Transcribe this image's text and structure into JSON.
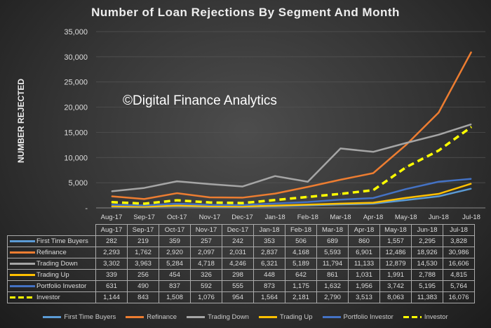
{
  "chart_data": {
    "type": "line",
    "title": "Number of Loan Rejections By Segment And Month",
    "xlabel": "",
    "ylabel": "NUMBER REJECTED",
    "ylim": [
      0,
      35000
    ],
    "yticks": [
      "-",
      "5,000",
      "10,000",
      "15,000",
      "20,000",
      "25,000",
      "30,000",
      "35,000"
    ],
    "grid": true,
    "legend_position": "bottom",
    "categories": [
      "Aug-17",
      "Sep-17",
      "Oct-17",
      "Nov-17",
      "Dec-17",
      "Jan-18",
      "Feb-18",
      "Mar-18",
      "Apr-18",
      "May-18",
      "Jun-18",
      "Jul-18"
    ],
    "series": [
      {
        "name": "First Time Buyers",
        "color": "#5b9bd5",
        "dash": false,
        "values": [
          282,
          219,
          359,
          257,
          242,
          353,
          506,
          689,
          860,
          1557,
          2295,
          3828
        ],
        "labels": [
          "282",
          "219",
          "359",
          "257",
          "242",
          "353",
          "506",
          "689",
          "860",
          "1,557",
          "2,295",
          "3,828"
        ]
      },
      {
        "name": "Refinance",
        "color": "#ed7d31",
        "dash": false,
        "values": [
          2293,
          1762,
          2920,
          2097,
          2031,
          2837,
          4168,
          5593,
          6901,
          12486,
          18926,
          30986
        ],
        "labels": [
          "2,293",
          "1,762",
          "2,920",
          "2,097",
          "2,031",
          "2,837",
          "4,168",
          "5,593",
          "6,901",
          "12,486",
          "18,926",
          "30,986"
        ]
      },
      {
        "name": "Trading Down",
        "color": "#a5a5a5",
        "dash": false,
        "values": [
          3302,
          3963,
          5284,
          4718,
          4246,
          6321,
          5189,
          11794,
          11133,
          12879,
          14530,
          16606
        ],
        "labels": [
          "3,302",
          "3,963",
          "5,284",
          "4,718",
          "4,246",
          "6,321",
          "5,189",
          "11,794",
          "11,133",
          "12,879",
          "14,530",
          "16,606"
        ]
      },
      {
        "name": "Trading Up",
        "color": "#ffc000",
        "dash": false,
        "values": [
          339,
          256,
          454,
          326,
          298,
          448,
          642,
          861,
          1031,
          1991,
          2788,
          4815
        ],
        "labels": [
          "339",
          "256",
          "454",
          "326",
          "298",
          "448",
          "642",
          "861",
          "1,031",
          "1,991",
          "2,788",
          "4,815"
        ]
      },
      {
        "name": "Portfolio Investor",
        "color": "#4472c4",
        "dash": false,
        "values": [
          631,
          490,
          837,
          592,
          555,
          873,
          1175,
          1632,
          1956,
          3742,
          5195,
          5764
        ],
        "labels": [
          "631",
          "490",
          "837",
          "592",
          "555",
          "873",
          "1,175",
          "1,632",
          "1,956",
          "3,742",
          "5,195",
          "5,764"
        ]
      },
      {
        "name": "Investor",
        "color": "#ffff00",
        "dash": true,
        "values": [
          1144,
          843,
          1508,
          1076,
          954,
          1564,
          2181,
          2790,
          3513,
          8063,
          11383,
          16076
        ],
        "labels": [
          "1,144",
          "843",
          "1,508",
          "1,076",
          "954",
          "1,564",
          "2,181",
          "2,790",
          "3,513",
          "8,063",
          "11,383",
          "16,076"
        ]
      }
    ]
  },
  "watermark": "©Digital Finance Analytics"
}
